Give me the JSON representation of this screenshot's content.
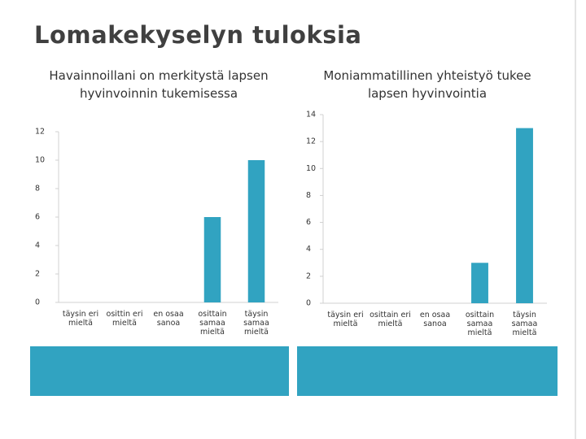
{
  "title": "Lomakekyselyn tuloksia",
  "chart_data": [
    {
      "type": "bar",
      "title": "Havainnoillani on merkitystä lapsen hyvinvoinnin tukemisessa",
      "categories": [
        "täysin eri mieltä",
        "osittin eri mieltä",
        "en osaa sanoa",
        "osittain samaa mieltä",
        "täysin samaa mieltä"
      ],
      "values": [
        0,
        0,
        0,
        6,
        10
      ],
      "color": "#31a3c1",
      "ylim": [
        0,
        12
      ],
      "yticks": [
        0,
        2,
        4,
        6,
        8,
        10,
        12
      ]
    },
    {
      "type": "bar",
      "title": "Moniammatillinen yhteistyö tukee lapsen hyvinvointia",
      "categories": [
        "täysin eri mieltä",
        "osittain eri mieltä",
        "en osaa sanoa",
        "osittain samaa mieltä",
        "täysin samaa mieltä"
      ],
      "values": [
        0,
        0,
        0,
        3,
        13
      ],
      "color": "#31a3c1",
      "ylim": [
        0,
        14
      ],
      "yticks": [
        0,
        2,
        4,
        6,
        8,
        10,
        12,
        14
      ]
    }
  ]
}
